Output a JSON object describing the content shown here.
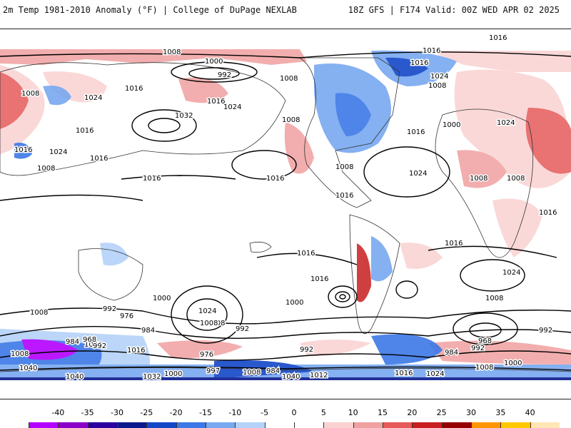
{
  "header": {
    "title": "2m Temp 1981-2010 Anomaly (°F) | College of DuPage NEXLAB",
    "run_info": "18Z GFS | F174 Valid: 00Z WED APR 02 2025"
  },
  "map": {
    "projection": "cylindrical world map",
    "isobar_color": "#000000",
    "isobar_labels": [
      "1008",
      "1000",
      "992",
      "1016",
      "1024",
      "1008",
      "1008",
      "1016",
      "1024",
      "1016",
      "1016",
      "1032",
      "1024",
      "1008",
      "1016",
      "1016",
      "1008",
      "1016",
      "1024",
      "1008",
      "1016",
      "1000",
      "1024",
      "1016",
      "1016",
      "1008",
      "1016",
      "1024",
      "1016",
      "1008",
      "1008",
      "1016",
      "1016",
      "1016",
      "1024",
      "1016",
      "1000",
      "1024",
      "1008",
      "992",
      "976",
      "984",
      "1000",
      "992",
      "1008",
      "1000",
      "1016",
      "1008",
      "968",
      "984",
      "992",
      "1008",
      "976",
      "1000",
      "997",
      "1008",
      "984",
      "1040",
      "1012",
      "992",
      "1016",
      "1024",
      "1008",
      "1000",
      "992",
      "968",
      "984",
      "992",
      "1008",
      "1024",
      "1040",
      "1032",
      "1040"
    ]
  },
  "colorbar": {
    "unit": "°F",
    "ticks": [
      "-40",
      "-35",
      "-30",
      "-25",
      "-20",
      "-15",
      "-10",
      "-5",
      "0",
      "5",
      "10",
      "15",
      "20",
      "25",
      "30",
      "35",
      "40"
    ],
    "colors": [
      "#b400ff",
      "#8a00c8",
      "#2a00a0",
      "#0a1a8c",
      "#1446c8",
      "#3c78e6",
      "#78a8f0",
      "#b4d2f8",
      "#ffffff",
      "#ffffff",
      "#fad2d2",
      "#f0a0a0",
      "#e65a5a",
      "#c81e1e",
      "#960000",
      "#ff9600",
      "#ffc800",
      "#ffe6b4"
    ]
  }
}
